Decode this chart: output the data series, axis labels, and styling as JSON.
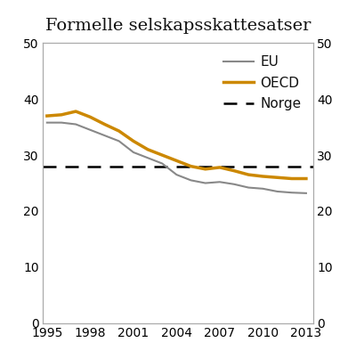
{
  "title": "Formelle selskapsskattesatser",
  "years": [
    1995,
    1996,
    1997,
    1998,
    1999,
    2000,
    2001,
    2002,
    2003,
    2004,
    2005,
    2006,
    2007,
    2008,
    2009,
    2010,
    2011,
    2012,
    2013
  ],
  "eu": [
    35.8,
    35.8,
    35.5,
    34.5,
    33.5,
    32.5,
    30.5,
    29.5,
    28.5,
    26.5,
    25.5,
    25.0,
    25.2,
    24.8,
    24.2,
    24.0,
    23.5,
    23.3,
    23.2
  ],
  "oecd": [
    37.0,
    37.2,
    37.8,
    36.8,
    35.5,
    34.3,
    32.5,
    31.0,
    30.0,
    29.0,
    28.0,
    27.5,
    27.8,
    27.2,
    26.5,
    26.2,
    26.0,
    25.8,
    25.8
  ],
  "norge": 28.0,
  "eu_color": "#888888",
  "oecd_color": "#CC8800",
  "norge_color": "#000000",
  "eu_linewidth": 1.5,
  "oecd_linewidth": 2.5,
  "norge_linewidth": 1.8,
  "ylim": [
    0,
    50
  ],
  "yticks": [
    0,
    10,
    20,
    30,
    40,
    50
  ],
  "xlim": [
    1994.7,
    2013.5
  ],
  "xticks": [
    1995,
    1998,
    2001,
    2004,
    2007,
    2010,
    2013
  ],
  "background_color": "#ffffff",
  "title_fontsize": 14,
  "tick_fontsize": 10,
  "legend_fontsize": 11,
  "spine_color": "#aaaaaa",
  "spine_linewidth": 0.8
}
